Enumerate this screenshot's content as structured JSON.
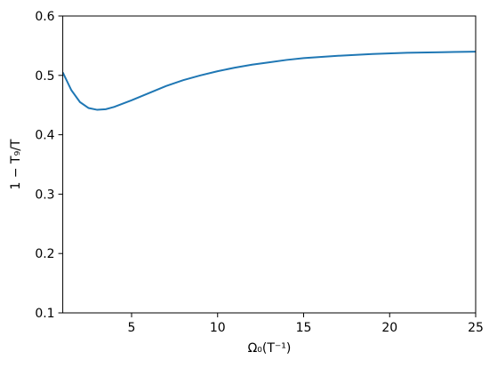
{
  "chart_data": {
    "type": "line",
    "xlabel": "Ω₀(T⁻¹)",
    "ylabel": "1 − T₉/T",
    "x": [
      1,
      1.5,
      2,
      2.5,
      3,
      3.5,
      4,
      5,
      6,
      7,
      8,
      9,
      10,
      11,
      12,
      13,
      14,
      15,
      17,
      19,
      21,
      23,
      25
    ],
    "series": [
      {
        "color": "#1f77b4",
        "values": [
          0.505,
          0.475,
          0.455,
          0.445,
          0.442,
          0.443,
          0.447,
          0.458,
          0.47,
          0.482,
          0.492,
          0.5,
          0.507,
          0.513,
          0.518,
          0.522,
          0.526,
          0.529,
          0.533,
          0.536,
          0.538,
          0.539,
          0.54
        ]
      }
    ],
    "xlim": [
      1,
      25
    ],
    "xticks": [
      5,
      10,
      15,
      20,
      25
    ],
    "ylim": [
      0.1,
      0.6
    ],
    "yticks": [
      0.1,
      0.2,
      0.3,
      0.4,
      0.5,
      0.6
    ],
    "grid": false
  }
}
